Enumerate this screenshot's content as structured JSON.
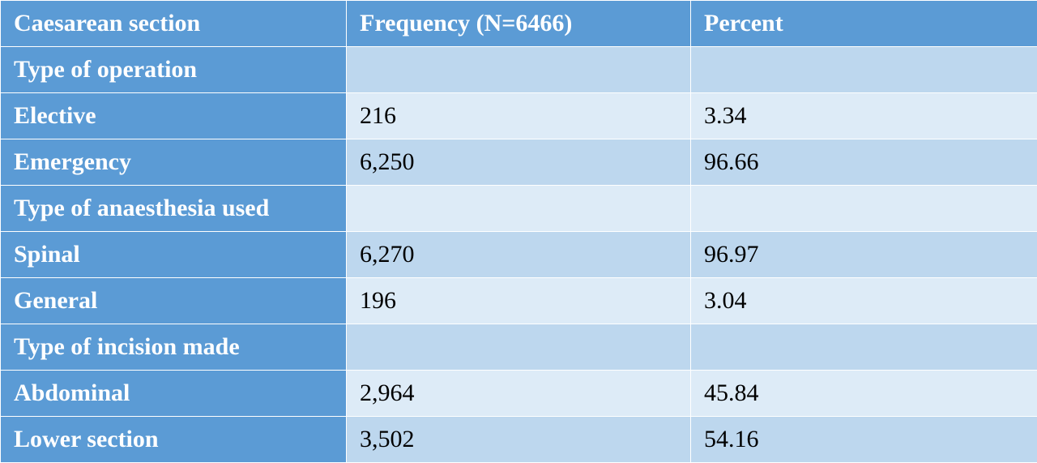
{
  "table": {
    "header": [
      "Caesarean section",
      "Frequency (N=6466)",
      "Percent"
    ],
    "rows": [
      [
        "Type of operation"
      ],
      [
        "Elective",
        "216",
        "3.34"
      ],
      [
        "Emergency",
        "6,250",
        "96.66"
      ],
      [
        "Type of anaesthesia used"
      ],
      [
        "Spinal",
        "6,270",
        "96.97"
      ],
      [
        "General",
        "196",
        "3.04"
      ],
      [
        "Type of incision made"
      ],
      [
        "Abdominal",
        "2,964",
        "45.84"
      ],
      [
        "Lower section",
        "3,502",
        "54.16"
      ]
    ]
  }
}
